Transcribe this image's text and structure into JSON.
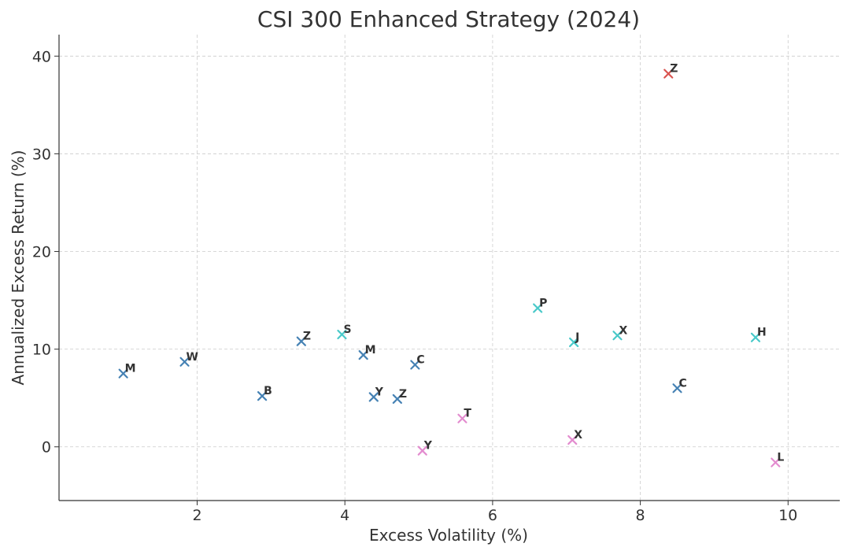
{
  "chart_data": {
    "type": "scatter",
    "title": "CSI 300 Enhanced Strategy (2024)",
    "xlabel": "Excess Volatility (%)",
    "ylabel": "Annualized Excess Return (%)",
    "xlim": [
      0.13,
      10.7
    ],
    "ylim": [
      -5.5,
      42.2
    ],
    "xticks": [
      2,
      4,
      6,
      8,
      10
    ],
    "yticks": [
      0,
      10,
      20,
      30,
      40
    ],
    "grid": true,
    "marker": "x",
    "points": [
      {
        "label": "M",
        "x": 1.0,
        "y": 7.5,
        "color": "#4682b4"
      },
      {
        "label": "W",
        "x": 1.83,
        "y": 8.7,
        "color": "#4682b4"
      },
      {
        "label": "B",
        "x": 2.88,
        "y": 5.2,
        "color": "#4682b4"
      },
      {
        "label": "Z",
        "x": 3.41,
        "y": 10.8,
        "color": "#4682b4"
      },
      {
        "label": "S",
        "x": 3.96,
        "y": 11.5,
        "color": "#48c9c9"
      },
      {
        "label": "M",
        "x": 4.25,
        "y": 9.4,
        "color": "#4682b4"
      },
      {
        "label": "Y",
        "x": 4.39,
        "y": 5.1,
        "color": "#4682b4"
      },
      {
        "label": "Z",
        "x": 4.71,
        "y": 4.9,
        "color": "#4682b4"
      },
      {
        "label": "C",
        "x": 4.95,
        "y": 8.4,
        "color": "#4682b4"
      },
      {
        "label": "Y",
        "x": 5.05,
        "y": -0.4,
        "color": "#e38ccf"
      },
      {
        "label": "T",
        "x": 5.59,
        "y": 2.9,
        "color": "#e38ccf"
      },
      {
        "label": "P",
        "x": 6.61,
        "y": 14.2,
        "color": "#48c9c9"
      },
      {
        "label": "X",
        "x": 7.08,
        "y": 0.7,
        "color": "#e38ccf"
      },
      {
        "label": "J",
        "x": 7.1,
        "y": 10.7,
        "color": "#48c9c9"
      },
      {
        "label": "X",
        "x": 7.69,
        "y": 11.4,
        "color": "#48c9c9"
      },
      {
        "label": "Z",
        "x": 8.38,
        "y": 38.2,
        "color": "#d9534f"
      },
      {
        "label": "C",
        "x": 8.5,
        "y": 6.0,
        "color": "#4682b4"
      },
      {
        "label": "H",
        "x": 9.56,
        "y": 11.2,
        "color": "#48c9c9"
      },
      {
        "label": "L",
        "x": 9.83,
        "y": -1.6,
        "color": "#e38ccf"
      }
    ]
  }
}
